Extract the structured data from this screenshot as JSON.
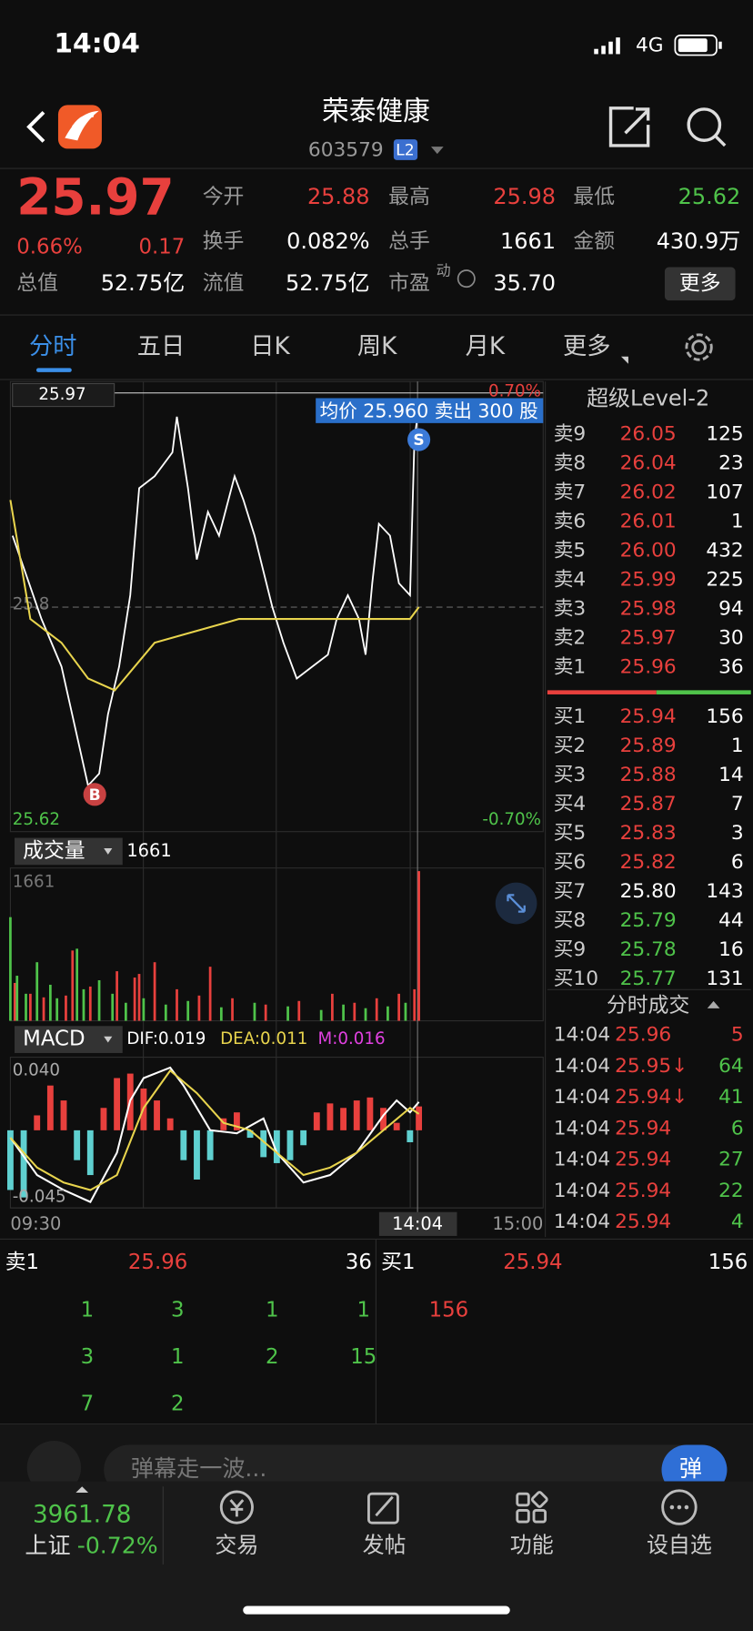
{
  "status_bar": {
    "time": "14:04",
    "network": "4G"
  },
  "header": {
    "title": "荣泰健康",
    "code": "603579",
    "badge": "L2"
  },
  "quote": {
    "price": "25.97",
    "change_pct": "0.66%",
    "change": "0.17",
    "total_value_label": "总值",
    "total_value": "52.75亿",
    "stats": [
      {
        "label": "今开",
        "value": "25.88",
        "color": "#e8403d"
      },
      {
        "label": "最高",
        "value": "25.98",
        "color": "#e8403d"
      },
      {
        "label": "最低",
        "value": "25.62",
        "color": "#4fc34a"
      },
      {
        "label": "换手",
        "value": "0.082%",
        "color": "#ffffff"
      },
      {
        "label": "总手",
        "value": "1661",
        "color": "#ffffff"
      },
      {
        "label": "金额",
        "value": "430.9万",
        "color": "#ffffff"
      },
      {
        "label": "流值",
        "value": "52.75亿",
        "color": "#ffffff"
      },
      {
        "label": "市盈",
        "sup": "动",
        "value": "35.70",
        "color": "#ffffff"
      }
    ],
    "more": "更多"
  },
  "tabs": [
    "分时",
    "五日",
    "日K",
    "周K",
    "月K",
    "更多"
  ],
  "chart_data": [
    {
      "type": "line",
      "price_label": "25.97",
      "top_pct": "0.70%",
      "bottom_pct": "-0.70%",
      "low_label": "25.62",
      "tooltip": "均价 25.960 卖出 300 股",
      "xlim": [
        0,
        240
      ],
      "ylim": [
        25.62,
        25.98
      ],
      "yticks": [
        25.8
      ],
      "sell_marker": {
        "label": "S",
        "x": 184,
        "value": 25.96
      },
      "buy_marker": {
        "label": "B",
        "x": 38,
        "value": 25.66
      },
      "series": [
        {
          "color": "#ffffff",
          "x": [
            1,
            14,
            23,
            35,
            40,
            44,
            49,
            54,
            58,
            65,
            73,
            75,
            80,
            84,
            89,
            94,
            101,
            105,
            110,
            118,
            123,
            129,
            136,
            143,
            147,
            152,
            157,
            160,
            163,
            166,
            171,
            175,
            180,
            182,
            184
          ],
          "values": [
            25.86,
            25.79,
            25.75,
            25.65,
            25.66,
            25.71,
            25.75,
            25.81,
            25.9,
            25.91,
            25.93,
            25.96,
            25.9,
            25.84,
            25.88,
            25.86,
            25.91,
            25.89,
            25.86,
            25.8,
            25.77,
            25.74,
            25.75,
            25.76,
            25.79,
            25.81,
            25.79,
            25.76,
            25.82,
            25.87,
            25.86,
            25.82,
            25.81,
            25.94,
            25.97
          ]
        },
        {
          "color": "#e8d44d",
          "x": [
            0,
            9,
            23,
            35,
            47,
            65,
            84,
            103,
            122,
            150,
            180,
            184
          ],
          "values": [
            25.89,
            25.79,
            25.77,
            25.74,
            25.73,
            25.77,
            25.78,
            25.79,
            25.79,
            25.79,
            25.79,
            25.8
          ]
        }
      ]
    },
    {
      "type": "bar",
      "title": "成交量",
      "current": "1661",
      "max_label": "1661",
      "xlim": [
        0,
        240
      ],
      "ylim": [
        0,
        1661
      ],
      "series": [
        {
          "color": "#e8403d",
          "x": [
            2,
            9,
            15,
            25,
            28,
            36,
            48,
            56,
            58,
            65,
            75,
            85,
            90,
            100,
            115,
            130,
            145,
            155,
            165,
            175,
            182,
            184
          ],
          "values": [
            420,
            300,
            260,
            280,
            780,
            380,
            550,
            480,
            520,
            650,
            350,
            280,
            600,
            250,
            180,
            220,
            300,
            200,
            250,
            300,
            350,
            1661
          ]
        },
        {
          "color": "#4fc34a",
          "x": [
            0,
            3,
            7,
            12,
            18,
            21,
            30,
            33,
            40,
            46,
            52,
            60,
            70,
            80,
            95,
            110,
            125,
            140,
            150,
            160,
            170,
            178
          ],
          "values": [
            1150,
            500,
            300,
            650,
            400,
            250,
            800,
            350,
            450,
            300,
            200,
            250,
            180,
            220,
            150,
            200,
            160,
            120,
            180,
            140,
            160,
            200
          ]
        }
      ]
    },
    {
      "type": "macd",
      "title": "MACD",
      "dif": "DIF:0.019",
      "dea": "DEA:0.011",
      "m": "M:0.016",
      "top_label": "0.040",
      "bottom_label": "-0.045",
      "xlim": [
        0,
        240
      ],
      "ylim": [
        -0.052,
        0.049
      ],
      "up_color": "#e8403d",
      "down_color": "#5fd0d0",
      "histogram": {
        "x": [
          0,
          6,
          12,
          18,
          24,
          30,
          36,
          42,
          48,
          54,
          60,
          66,
          72,
          78,
          84,
          90,
          96,
          102,
          108,
          114,
          120,
          126,
          132,
          138,
          144,
          150,
          156,
          162,
          168,
          174,
          180,
          184
        ],
        "values": [
          -0.04,
          -0.045,
          0.01,
          0.03,
          0.02,
          -0.02,
          -0.03,
          0.015,
          0.035,
          0.038,
          0.028,
          0.02,
          0.008,
          -0.02,
          -0.033,
          -0.02,
          0.008,
          0.012,
          -0.005,
          -0.018,
          -0.022,
          -0.02,
          -0.01,
          0.012,
          0.018,
          0.015,
          0.02,
          0.022,
          0.015,
          0.005,
          -0.008,
          0.016
        ]
      },
      "series": [
        {
          "color": "#ffffff",
          "x": [
            0,
            12,
            24,
            36,
            48,
            54,
            60,
            72,
            78,
            90,
            102,
            114,
            120,
            132,
            144,
            156,
            168,
            174,
            180,
            184
          ],
          "values": [
            -0.005,
            -0.03,
            -0.04,
            -0.048,
            -0.015,
            0.02,
            0.035,
            0.042,
            0.03,
            0.0,
            -0.002,
            0.008,
            -0.015,
            -0.035,
            -0.03,
            -0.015,
            0.01,
            0.02,
            0.012,
            0.019
          ]
        },
        {
          "color": "#e8d44d",
          "x": [
            0,
            12,
            24,
            36,
            48,
            60,
            72,
            84,
            96,
            108,
            120,
            132,
            144,
            156,
            168,
            180,
            184
          ],
          "values": [
            -0.005,
            -0.025,
            -0.035,
            -0.04,
            -0.03,
            0.015,
            0.04,
            0.025,
            0.005,
            0.0,
            -0.015,
            -0.03,
            -0.025,
            -0.015,
            0.0,
            0.015,
            0.011
          ]
        }
      ]
    }
  ],
  "time_axis": {
    "start": "09:30",
    "current": "14:04",
    "end": "15:00"
  },
  "order_book": {
    "title": "超级Level-2",
    "asks": [
      {
        "label": "卖9",
        "price": "26.05",
        "qty": "125"
      },
      {
        "label": "卖8",
        "price": "26.04",
        "qty": "23"
      },
      {
        "label": "卖7",
        "price": "26.02",
        "qty": "107"
      },
      {
        "label": "卖6",
        "price": "26.01",
        "qty": "1"
      },
      {
        "label": "卖5",
        "price": "26.00",
        "qty": "432"
      },
      {
        "label": "卖4",
        "price": "25.99",
        "qty": "225"
      },
      {
        "label": "卖3",
        "price": "25.98",
        "qty": "94"
      },
      {
        "label": "卖2",
        "price": "25.97",
        "qty": "30"
      },
      {
        "label": "卖1",
        "price": "25.96",
        "qty": "36"
      }
    ],
    "bids": [
      {
        "label": "买1",
        "price": "25.94",
        "qty": "156",
        "color": "#e8403d"
      },
      {
        "label": "买2",
        "price": "25.89",
        "qty": "1",
        "color": "#e8403d"
      },
      {
        "label": "买3",
        "price": "25.88",
        "qty": "14",
        "color": "#e8403d"
      },
      {
        "label": "买4",
        "price": "25.87",
        "qty": "7",
        "color": "#e8403d"
      },
      {
        "label": "买5",
        "price": "25.83",
        "qty": "3",
        "color": "#e8403d"
      },
      {
        "label": "买6",
        "price": "25.82",
        "qty": "6",
        "color": "#e8403d"
      },
      {
        "label": "买7",
        "price": "25.80",
        "qty": "143",
        "color": "#ffffff"
      },
      {
        "label": "买8",
        "price": "25.79",
        "qty": "44",
        "color": "#4fc34a"
      },
      {
        "label": "买9",
        "price": "25.78",
        "qty": "16",
        "color": "#4fc34a"
      },
      {
        "label": "买10",
        "price": "25.77",
        "qty": "131",
        "color": "#4fc34a"
      }
    ]
  },
  "trades": {
    "title": "分时成交",
    "rows": [
      {
        "time": "14:04",
        "price": "25.96",
        "qty": "5",
        "color": "#e8403d"
      },
      {
        "time": "14:04",
        "price": "25.95↓",
        "qty": "64",
        "color": "#4fc34a"
      },
      {
        "time": "14:04",
        "price": "25.94↓",
        "qty": "41",
        "color": "#4fc34a"
      },
      {
        "time": "14:04",
        "price": "25.94",
        "qty": "6",
        "color": "#4fc34a"
      },
      {
        "time": "14:04",
        "price": "25.94",
        "qty": "27",
        "color": "#4fc34a"
      },
      {
        "time": "14:04",
        "price": "25.94",
        "qty": "22",
        "color": "#4fc34a"
      },
      {
        "time": "14:04",
        "price": "25.94",
        "qty": "4",
        "color": "#4fc34a"
      }
    ]
  },
  "queue": {
    "ask": {
      "label": "卖1",
      "price": "25.96",
      "qty": "36",
      "orders": [
        "1",
        "3",
        "1",
        "1",
        "3",
        "1",
        "2",
        "15",
        "7",
        "2"
      ]
    },
    "bid": {
      "label": "买1",
      "price": "25.94",
      "qty": "156",
      "orders": [
        "156"
      ]
    }
  },
  "comment": {
    "placeholder": "弹幕走一波...",
    "send": "弹"
  },
  "bottom_bar": {
    "index_value": "3961.78",
    "index_name": "上证",
    "index_change": "-0.72%",
    "tabs": [
      "交易",
      "发帖",
      "功能",
      "设自选"
    ]
  }
}
